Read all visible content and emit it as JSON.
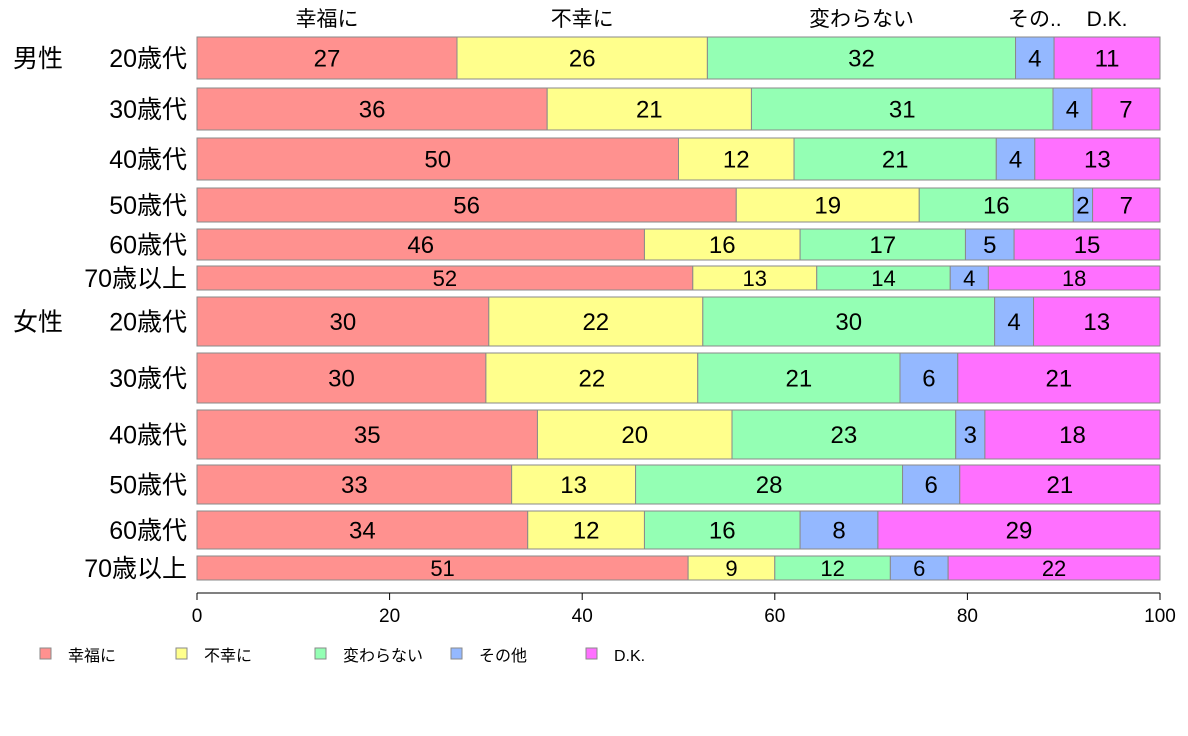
{
  "chart_data": {
    "type": "bar",
    "orientation": "horizontal-stacked-100",
    "xlim": [
      0,
      100
    ],
    "xticks": [
      0,
      20,
      40,
      60,
      80,
      100
    ],
    "series_names": [
      "幸福に",
      "不幸に",
      "変わらない",
      "その他",
      "D.K."
    ],
    "top_labels": [
      "幸福に",
      "不幸に",
      "変わらない",
      "その..",
      "D.K."
    ],
    "colors": [
      "#ff918f",
      "#ffff8c",
      "#94ffb4",
      "#94b8ff",
      "#ff70ff"
    ],
    "groups": [
      "男性",
      "女性"
    ],
    "rows": [
      {
        "group": "男性",
        "label": "20歳代",
        "values": [
          27,
          26,
          32,
          4,
          11
        ]
      },
      {
        "group": "",
        "label": "30歳代",
        "values": [
          36,
          21,
          31,
          4,
          7
        ]
      },
      {
        "group": "",
        "label": "40歳代",
        "values": [
          50,
          12,
          21,
          4,
          13
        ]
      },
      {
        "group": "",
        "label": "50歳代",
        "values": [
          56,
          19,
          16,
          2,
          7
        ]
      },
      {
        "group": "",
        "label": "60歳代",
        "values": [
          46,
          16,
          17,
          5,
          15
        ]
      },
      {
        "group": "",
        "label": "70歳以上",
        "values": [
          52,
          13,
          14,
          4,
          18
        ]
      },
      {
        "group": "女性",
        "label": "20歳代",
        "values": [
          30,
          22,
          30,
          4,
          13
        ]
      },
      {
        "group": "",
        "label": "30歳代",
        "values": [
          30,
          22,
          21,
          6,
          21
        ]
      },
      {
        "group": "",
        "label": "40歳代",
        "values": [
          35,
          20,
          23,
          3,
          18
        ]
      },
      {
        "group": "",
        "label": "50歳代",
        "values": [
          33,
          13,
          28,
          6,
          21
        ]
      },
      {
        "group": "",
        "label": "60歳代",
        "values": [
          34,
          12,
          16,
          8,
          29
        ]
      },
      {
        "group": "",
        "label": "70歳以上",
        "values": [
          51,
          9,
          12,
          6,
          22
        ]
      }
    ],
    "legend_position": "bottom-left"
  }
}
